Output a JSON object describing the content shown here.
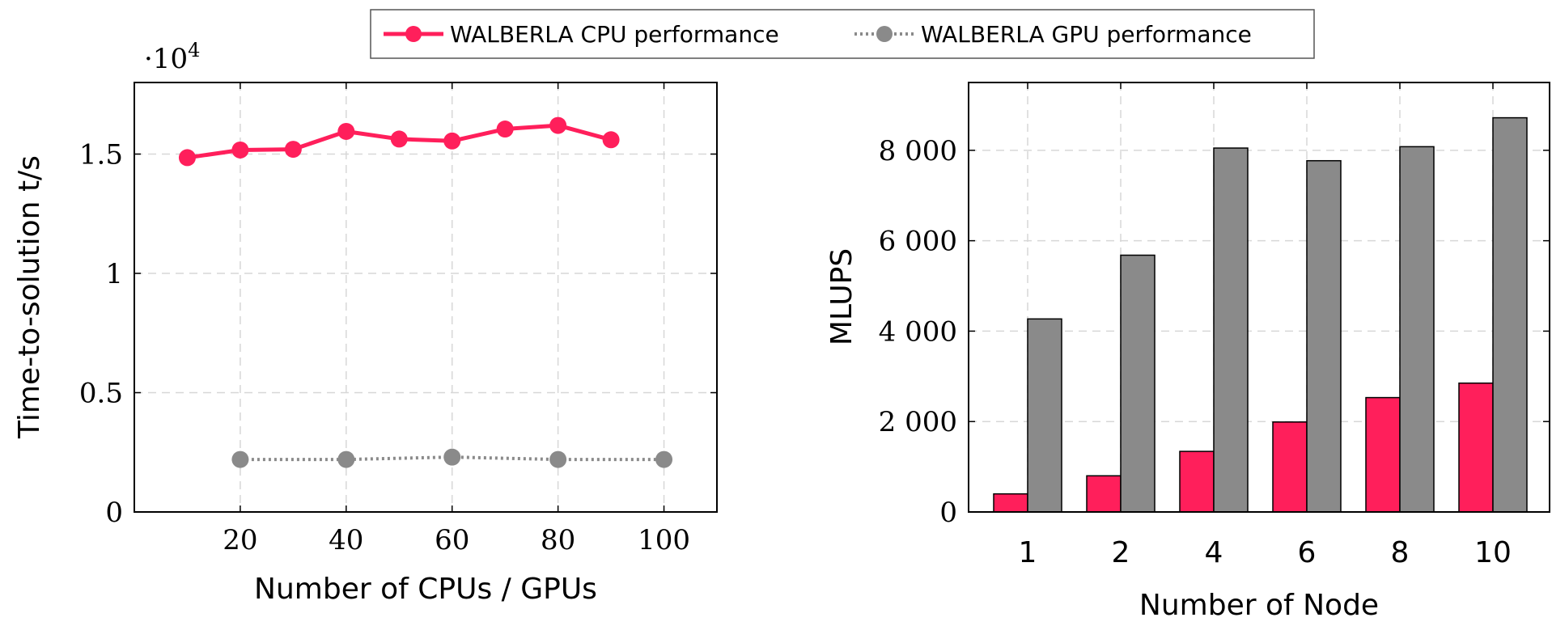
{
  "colors": {
    "cpu": "#ff1f5b",
    "gpu": "#8a8a8a"
  },
  "legend": {
    "items": [
      {
        "label": "WALBERLA CPU performance",
        "series": "cpu",
        "style": "solid",
        "marker": "circle"
      },
      {
        "label": "WALBERLA GPU performance",
        "series": "gpu",
        "style": "dotted",
        "marker": "circle"
      }
    ],
    "placement": "top-center"
  },
  "chart_data": [
    {
      "type": "line",
      "xlabel": "Number of CPUs / GPUs",
      "ylabel": "Time-to-solution t/s",
      "y_multiplier_label": "·10",
      "y_multiplier_exp": "4",
      "xlim": [
        0,
        110
      ],
      "ylim": [
        0,
        18000
      ],
      "xticks": [
        20,
        40,
        60,
        80,
        100
      ],
      "xtick_labels": [
        "20",
        "40",
        "60",
        "80",
        "100"
      ],
      "yticks": [
        0,
        5000,
        10000,
        15000
      ],
      "ytick_labels": [
        "0",
        "0.5",
        "1",
        "1.5"
      ],
      "grid": true,
      "series": [
        {
          "name": "WALBERLA CPU performance",
          "key": "cpu",
          "x": [
            10,
            20,
            30,
            40,
            50,
            60,
            70,
            80,
            90
          ],
          "y": [
            14850,
            15170,
            15200,
            15950,
            15630,
            15550,
            16050,
            16200,
            15600
          ]
        },
        {
          "name": "WALBERLA GPU performance",
          "key": "gpu",
          "x": [
            20,
            40,
            60,
            80,
            100
          ],
          "y": [
            2200,
            2200,
            2300,
            2200,
            2200
          ]
        }
      ]
    },
    {
      "type": "bar",
      "xlabel": "Number of Node",
      "ylabel": "MLUPS",
      "categories": [
        "1",
        "2",
        "4",
        "6",
        "8",
        "10"
      ],
      "ylim": [
        0,
        9500
      ],
      "yticks": [
        0,
        2000,
        4000,
        6000,
        8000
      ],
      "ytick_labels": [
        "0",
        "2 000",
        "4 000",
        "6 000",
        "8 000"
      ],
      "grid": true,
      "series": [
        {
          "name": "WALBERLA CPU performance",
          "key": "cpu",
          "values": [
            400,
            800,
            1340,
            1990,
            2530,
            2850
          ]
        },
        {
          "name": "WALBERLA GPU performance",
          "key": "gpu",
          "values": [
            4270,
            5680,
            8050,
            7770,
            8080,
            8720
          ]
        }
      ]
    }
  ]
}
